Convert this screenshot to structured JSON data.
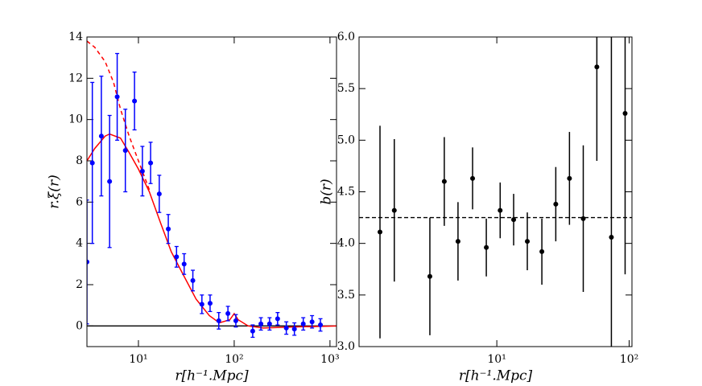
{
  "chart_data": [
    {
      "type": "errorbar",
      "xscale": "log",
      "xlabel": "r[h⁻¹.Mpc]",
      "ylabel": "r.ξ(r)",
      "xlim": [
        2.9,
        1170
      ],
      "ylim": [
        -1,
        14
      ],
      "xticks": [
        {
          "value": 10,
          "label": "10¹"
        },
        {
          "value": 100,
          "label": "10²"
        },
        {
          "value": 1000,
          "label": "10³"
        }
      ],
      "yticks": [
        0,
        2,
        4,
        6,
        8,
        10,
        12,
        14
      ],
      "points": {
        "color": "#0000ff",
        "caps": true,
        "x": [
          2.9,
          3.3,
          4.1,
          5.0,
          6.0,
          7.3,
          9.1,
          11,
          13.4,
          16.5,
          20.5,
          25,
          30,
          37,
          46,
          56,
          69,
          86,
          104,
          156,
          190,
          234,
          284,
          350,
          425,
          526,
          650,
          795
        ],
        "values": [
          3.1,
          7.9,
          9.2,
          7.0,
          11.1,
          8.5,
          10.9,
          7.5,
          7.9,
          6.4,
          4.7,
          3.35,
          3.0,
          2.2,
          1.05,
          1.1,
          0.25,
          0.6,
          0.25,
          -0.25,
          0.1,
          0.1,
          0.35,
          -0.1,
          -0.15,
          0.1,
          0.2,
          0.05
        ],
        "errors": [
          3,
          3.9,
          2.9,
          3.2,
          2.1,
          2.0,
          1.4,
          1.2,
          1.0,
          0.9,
          0.7,
          0.5,
          0.5,
          0.5,
          0.45,
          0.4,
          0.4,
          0.35,
          0.3,
          0.3,
          0.3,
          0.3,
          0.3,
          0.3,
          0.3,
          0.3,
          0.3,
          0.3
        ]
      },
      "curves": [
        {
          "color": "#ff0000",
          "dash": false,
          "x": [
            2.9,
            3.5,
            4.5,
            5,
            6.5,
            8,
            10,
            13,
            17,
            22,
            30,
            40,
            55,
            70,
            90,
            100,
            110,
            140,
            200,
            400,
            1170
          ],
          "values": [
            8.0,
            8.6,
            9.2,
            9.3,
            9.1,
            8.4,
            7.6,
            6.5,
            5.0,
            3.6,
            2.4,
            1.3,
            0.5,
            0.15,
            0.3,
            0.6,
            0.3,
            0.0,
            -0.1,
            -0.05,
            0
          ]
        },
        {
          "color": "#ff0000",
          "dash": true,
          "x": [
            2.9,
            3.5,
            4.5,
            5.5,
            6.5,
            8,
            10,
            13
          ],
          "values": [
            13.8,
            13.5,
            12.8,
            11.8,
            10.5,
            9.2,
            8.0,
            6.6
          ]
        }
      ],
      "hline": {
        "value": 0,
        "color": "#000000",
        "dash": false
      }
    },
    {
      "type": "errorbar",
      "xscale": "log",
      "xlabel": "r[h⁻¹.Mpc]",
      "ylabel": "b(r)",
      "xlim": [
        0.91,
        105
      ],
      "ylim": [
        3.0,
        6.0
      ],
      "xticks": [
        {
          "value": 10,
          "label": "10¹"
        },
        {
          "value": 100,
          "label": "10²"
        }
      ],
      "yticks": [
        {
          "value": 3,
          "label": "3.0"
        },
        3.5,
        {
          "value": 4,
          "label": "4.0"
        },
        4.5,
        {
          "value": 5,
          "label": "5.0"
        },
        5.5,
        {
          "value": 6,
          "label": "6.0"
        }
      ],
      "points": {
        "color": "#000000",
        "caps": false,
        "x": [
          1.31,
          1.68,
          3.12,
          4.01,
          5.09,
          6.56,
          8.33,
          10.6,
          13.4,
          17.0,
          21.9,
          27.9,
          35.4,
          45.0,
          57.0,
          73.4,
          93.2
        ],
        "values": [
          4.11,
          4.32,
          3.68,
          4.6,
          4.02,
          4.63,
          3.96,
          4.32,
          4.23,
          4.02,
          3.92,
          4.38,
          4.63,
          4.24,
          5.71,
          4.06,
          5.26
        ],
        "errors": [
          1.03,
          0.69,
          0.57,
          0.43,
          0.38,
          0.3,
          0.28,
          0.27,
          0.25,
          0.28,
          0.32,
          0.36,
          0.45,
          0.71,
          0.91,
          2.0,
          1.56
        ]
      },
      "curves": [],
      "hline": {
        "value": 4.25,
        "color": "#000000",
        "dash": true
      }
    }
  ]
}
